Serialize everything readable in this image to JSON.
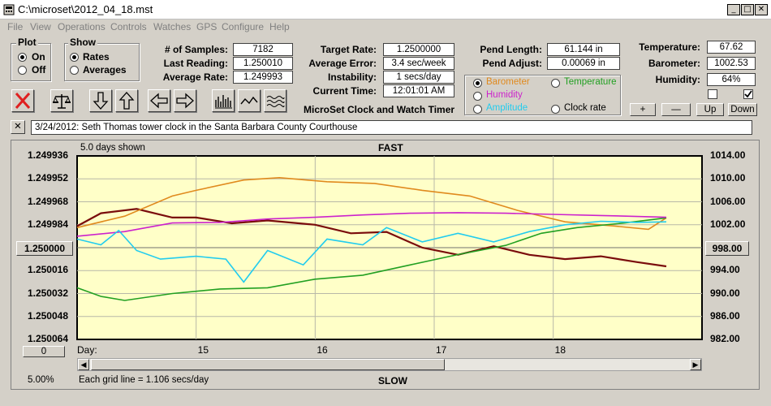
{
  "window": {
    "title": "C:\\microset\\2012_04_18.mst"
  },
  "menu": [
    "File",
    "View",
    "Operations",
    "Controls",
    "Watches",
    "GPS",
    "Configure",
    "Help"
  ],
  "plot_group": {
    "title": "Plot",
    "options": [
      "On",
      "Off"
    ],
    "selected": "On"
  },
  "show_group": {
    "title": "Show",
    "options": [
      "Rates",
      "Averages"
    ],
    "selected": "Rates"
  },
  "stats": {
    "samples_label": "# of Samples:",
    "samples": "7182",
    "last_reading_label": "Last Reading:",
    "last_reading": "1.250010",
    "average_rate_label": "Average Rate:",
    "average_rate": "1.249993",
    "target_rate_label": "Target Rate:",
    "target_rate": "1.2500000",
    "average_error_label": "Average Error:",
    "average_error": "3.4 sec/week",
    "instability_label": "Instability:",
    "instability": "1 secs/day",
    "current_time_label": "Current Time:",
    "current_time": "12:01:01 AM",
    "pend_length_label": "Pend Length:",
    "pend_length": "61.144 in",
    "pend_adjust_label": "Pend Adjust:",
    "pend_adjust": "0.00069 in",
    "temperature_label": "Temperature:",
    "temperature": "67.62",
    "barometer_label": "Barometer:",
    "barometer": "1002.53",
    "humidity_label": "Humidity:",
    "humidity": "64%"
  },
  "app_name": "MicroSet Clock and Watch Timer",
  "sensor_group": {
    "options": [
      {
        "label": "Barometer",
        "color": "#e08a1e",
        "selected": true
      },
      {
        "label": "Temperature",
        "color": "#22a022",
        "selected": false
      },
      {
        "label": "Humidity",
        "color": "#cc22cc",
        "selected": false
      },
      {
        "label": "Amplitude",
        "color": "#22ccee",
        "selected": false
      },
      {
        "label": "Clock rate",
        "color": "#000000",
        "selected": false
      }
    ]
  },
  "adjust_buttons": {
    "plus": "+",
    "minus": "—",
    "up": "Up",
    "down": "Down"
  },
  "description": "3/24/2012: Seth Thomas tower clock in the Santa Barbara County Courthouse",
  "chart_data": {
    "type": "line",
    "days_shown": "5.0 days shown",
    "top_label": "FAST",
    "bottom_label": "SLOW",
    "grid_note": "Each grid line = 1.106 secs/day",
    "scale_percent": "5.00%",
    "day_axis_label": "Day:",
    "day_ticks": [
      "15",
      "16",
      "17",
      "18"
    ],
    "left_ticks": [
      "1.249936",
      "1.249952",
      "1.249968",
      "1.249984",
      "1.250016",
      "1.250032",
      "1.250048",
      "1.250064"
    ],
    "center_value": "1.250000",
    "right_ticks": [
      "1014.00",
      "1010.00",
      "1006.00",
      "1002.00",
      "994.00",
      "990.00",
      "986.00",
      "982.00"
    ],
    "right_center_value": "998.00",
    "scroll_value": "0",
    "left_range": [
      1.249936,
      1.250064
    ],
    "right_range": [
      982,
      1014
    ],
    "colors": {
      "rate": "#7a0c0c",
      "barometer": "#e08a1e",
      "temperature": "#22a022",
      "humidity": "#cc22cc",
      "amplitude": "#22ccee",
      "background": "#ffffc8"
    },
    "series": [
      {
        "key": "rate",
        "x": [
          14.0,
          14.2,
          14.5,
          14.8,
          15.0,
          15.3,
          15.6,
          16.0,
          16.3,
          16.6,
          16.9,
          17.2,
          17.5,
          17.8,
          18.1,
          18.4,
          18.7,
          18.95
        ],
        "y": [
          1.249985,
          1.249976,
          1.249973,
          1.249979,
          1.249979,
          1.249983,
          1.249981,
          1.249984,
          1.24999,
          1.249989,
          1.25,
          1.250005,
          1.249999,
          1.250005,
          1.250008,
          1.250006,
          1.25001,
          1.250013
        ]
      },
      {
        "key": "barometer",
        "x": [
          14.0,
          14.4,
          14.8,
          15.0,
          15.4,
          15.7,
          16.1,
          16.5,
          16.9,
          17.3,
          17.7,
          18.1,
          18.5,
          18.8,
          18.95
        ],
        "y": [
          1001.5,
          1003.5,
          1007.0,
          1008.0,
          1009.8,
          1010.2,
          1009.5,
          1009.2,
          1008.0,
          1007.0,
          1004.5,
          1002.5,
          1001.8,
          1001.2,
          1003.2
        ]
      },
      {
        "key": "temperature",
        "x": [
          14.0,
          14.2,
          14.4,
          14.8,
          15.2,
          15.6,
          16.0,
          16.4,
          16.8,
          17.2,
          17.6,
          17.9,
          18.2,
          18.6,
          18.95
        ],
        "y": [
          991.0,
          989.5,
          988.8,
          990.0,
          990.8,
          991.0,
          992.5,
          993.2,
          995.0,
          996.8,
          998.4,
          1000.5,
          1001.5,
          1002.3,
          1003.2
        ]
      },
      {
        "key": "humidity",
        "x": [
          14.0,
          14.4,
          14.8,
          15.2,
          15.6,
          16.0,
          16.4,
          16.8,
          17.2,
          17.6,
          18.0,
          18.4,
          18.8,
          18.95
        ],
        "y": [
          1000.0,
          1000.8,
          1002.3,
          1002.4,
          1003.0,
          1003.3,
          1003.7,
          1004.0,
          1004.1,
          1004.0,
          1003.8,
          1003.6,
          1003.4,
          1003.3
        ]
      },
      {
        "key": "amplitude",
        "x": [
          14.0,
          14.2,
          14.35,
          14.5,
          14.7,
          15.0,
          15.25,
          15.4,
          15.6,
          15.9,
          16.1,
          16.4,
          16.6,
          16.9,
          17.2,
          17.5,
          17.8,
          18.1,
          18.4,
          18.7,
          18.95
        ],
        "y": [
          999.5,
          998.5,
          1001.0,
          997.5,
          996.0,
          996.5,
          996.0,
          992.0,
          997.5,
          995.0,
          999.5,
          998.5,
          1001.5,
          999.0,
          1000.5,
          999.0,
          1000.8,
          1002.0,
          1002.6,
          1002.4,
          1002.5
        ]
      }
    ]
  }
}
